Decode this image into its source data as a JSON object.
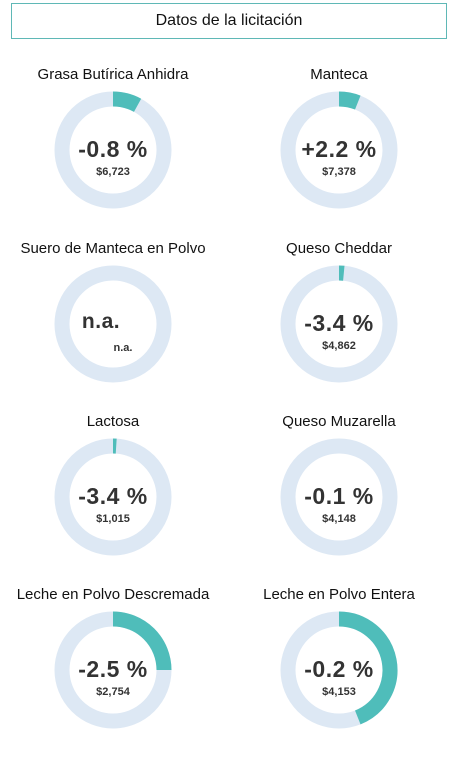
{
  "header": {
    "title": "Datos de la licitación"
  },
  "colors": {
    "track": "#dde8f4",
    "fill": "#4fbdba",
    "border": "#5fb8b6"
  },
  "chart_data": {
    "type": "donut-grid",
    "items": [
      {
        "name": "Grasa Butírica Anhidra",
        "change": "-0.8 %",
        "price": "$6,723",
        "fill_fraction": 0.08
      },
      {
        "name": "Manteca",
        "change": "+2.2 %",
        "price": "$7,378",
        "fill_fraction": 0.06
      },
      {
        "name": "Suero de Manteca en Polvo",
        "change": "n.a.",
        "price": "n.a.",
        "fill_fraction": 0
      },
      {
        "name": "Queso Cheddar",
        "change": "-3.4 %",
        "price": "$4,862",
        "fill_fraction": 0.015
      },
      {
        "name": "Lactosa",
        "change": "-3.4 %",
        "price": "$1,015",
        "fill_fraction": 0.01
      },
      {
        "name": "Queso Muzarella",
        "change": "-0.1 %",
        "price": "$4,148",
        "fill_fraction": 0
      },
      {
        "name": "Leche en Polvo Descremada",
        "change": "-2.5 %",
        "price": "$2,754",
        "fill_fraction": 0.25
      },
      {
        "name": "Leche en Polvo Entera",
        "change": "-0.2 %",
        "price": "$4,153",
        "fill_fraction": 0.44
      }
    ]
  }
}
